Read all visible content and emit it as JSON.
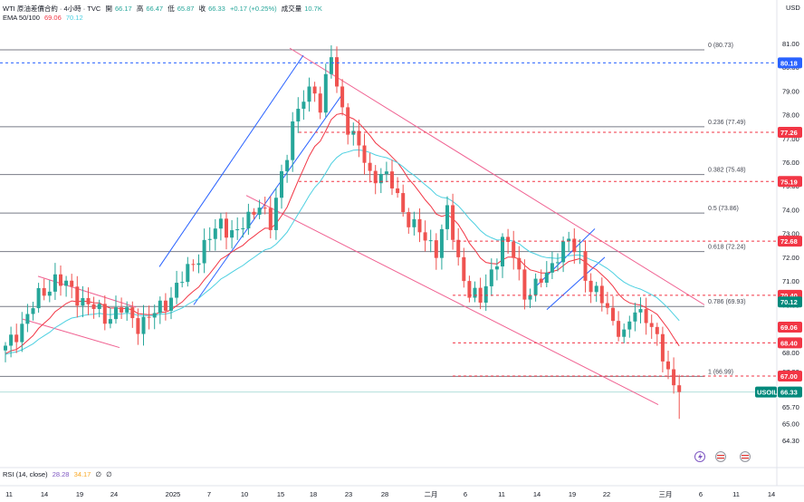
{
  "header": {
    "title": "WTI 原油差價合約 · 4小時 · TVC",
    "open_label": "開",
    "open": "66.17",
    "high_label": "高",
    "high": "66.47",
    "low_label": "低",
    "low": "65.87",
    "close_label": "收",
    "close": "66.33",
    "change": "+0.17 (+0.25%)",
    "volume_label": "成交量",
    "volume": "10.7K",
    "ema_label": "EMA 50/100",
    "ema50": "69.06",
    "ema100": "70.12"
  },
  "rsi": {
    "label": "RSI (14, close)",
    "v1": "28.28",
    "v2": "34.17",
    "v3": "∅",
    "v4": "∅"
  },
  "currency": "USD",
  "colors": {
    "up": "#26a69a",
    "down": "#ef5350",
    "fib": "#787b86",
    "ema50": "#f23645",
    "ema100": "#4dd0e1",
    "price_tag": "#2962ff",
    "channel_red": "#f06292",
    "channel_blue": "#2962ff"
  },
  "chart_data": {
    "type": "candlestick",
    "y_ticks": [
      "81.00",
      "80.00",
      "79.00",
      "78.00",
      "77.00",
      "76.00",
      "75.00",
      "74.00",
      "73.00",
      "72.00",
      "71.00",
      "70.00",
      "69.00",
      "68.00",
      "67.20",
      "66.40",
      "65.70",
      "65.00",
      "64.30"
    ],
    "x_ticks": [
      "11",
      "14",
      "19",
      "24",
      "2025",
      "7",
      "10",
      "15",
      "18",
      "23",
      "28",
      "二月",
      "6",
      "11",
      "14",
      "19",
      "22",
      "三月",
      "6",
      "11",
      "14"
    ],
    "fib_levels": [
      {
        "label": "0 (80.73)",
        "value": 80.73
      },
      {
        "label": "0.236 (77.49)",
        "value": 77.49
      },
      {
        "label": "0.382 (75.48)",
        "value": 75.48
      },
      {
        "label": "0.5 (73.86)",
        "value": 73.86
      },
      {
        "label": "0.618 (72.24)",
        "value": 72.24
      },
      {
        "label": "0.786 (69.93)",
        "value": 69.93
      },
      {
        "label": "1 (66.99)",
        "value": 66.99
      }
    ],
    "price_tags": [
      {
        "label": "80.18",
        "value": 80.18,
        "color": "#2962ff"
      },
      {
        "label": "77.26",
        "value": 77.26,
        "color": "#f23645"
      },
      {
        "label": "75.19",
        "value": 75.19,
        "color": "#f23645"
      },
      {
        "label": "72.68",
        "value": 72.68,
        "color": "#f23645"
      },
      {
        "label": "70.40",
        "value": 70.4,
        "color": "#f23645"
      },
      {
        "label": "70.12",
        "value": 70.12,
        "color": "#00897b"
      },
      {
        "label": "69.06",
        "value": 69.06,
        "color": "#f23645"
      },
      {
        "label": "68.40",
        "value": 68.4,
        "color": "#f23645"
      },
      {
        "label": "67.00",
        "value": 67.0,
        "color": "#f23645"
      }
    ],
    "symbol_tag": {
      "symbol": "USOIL",
      "value_label": "66.33",
      "value": 66.33
    },
    "close_path": [
      [
        0,
        68.1
      ],
      [
        3,
        69.2
      ],
      [
        6,
        70.3
      ],
      [
        9,
        71.1
      ],
      [
        12,
        70.6
      ],
      [
        15,
        70.0
      ],
      [
        18,
        69.5
      ],
      [
        21,
        69.8
      ],
      [
        24,
        69.2
      ],
      [
        27,
        69.6
      ],
      [
        30,
        70.4
      ],
      [
        33,
        71.4
      ],
      [
        36,
        72.5
      ],
      [
        39,
        73.4
      ],
      [
        42,
        73.0
      ],
      [
        44,
        73.6
      ],
      [
        46,
        74.4
      ],
      [
        48,
        73.2
      ],
      [
        50,
        75.5
      ],
      [
        52,
        77.6
      ],
      [
        54,
        78.6
      ],
      [
        56,
        79.2
      ],
      [
        57,
        78.3
      ],
      [
        59,
        80.5
      ],
      [
        60,
        79.0
      ],
      [
        62,
        77.6
      ],
      [
        64,
        76.6
      ],
      [
        66,
        75.4
      ],
      [
        68,
        75.6
      ],
      [
        70,
        75.0
      ],
      [
        72,
        74.0
      ],
      [
        74,
        73.3
      ],
      [
        76,
        72.7
      ],
      [
        78,
        72.4
      ],
      [
        80,
        73.9
      ],
      [
        82,
        71.8
      ],
      [
        84,
        70.6
      ],
      [
        86,
        70.1
      ],
      [
        88,
        71.4
      ],
      [
        90,
        72.7
      ],
      [
        92,
        72.1
      ],
      [
        94,
        70.5
      ],
      [
        96,
        70.7
      ],
      [
        98,
        71.3
      ],
      [
        100,
        72.2
      ],
      [
        102,
        72.6
      ],
      [
        104,
        72.1
      ],
      [
        106,
        70.6
      ],
      [
        108,
        70.2
      ],
      [
        110,
        69.4
      ],
      [
        112,
        68.6
      ],
      [
        114,
        69.8
      ],
      [
        116,
        69.6
      ],
      [
        118,
        68.4
      ],
      [
        120,
        67.2
      ],
      [
        122,
        66.33
      ]
    ]
  }
}
